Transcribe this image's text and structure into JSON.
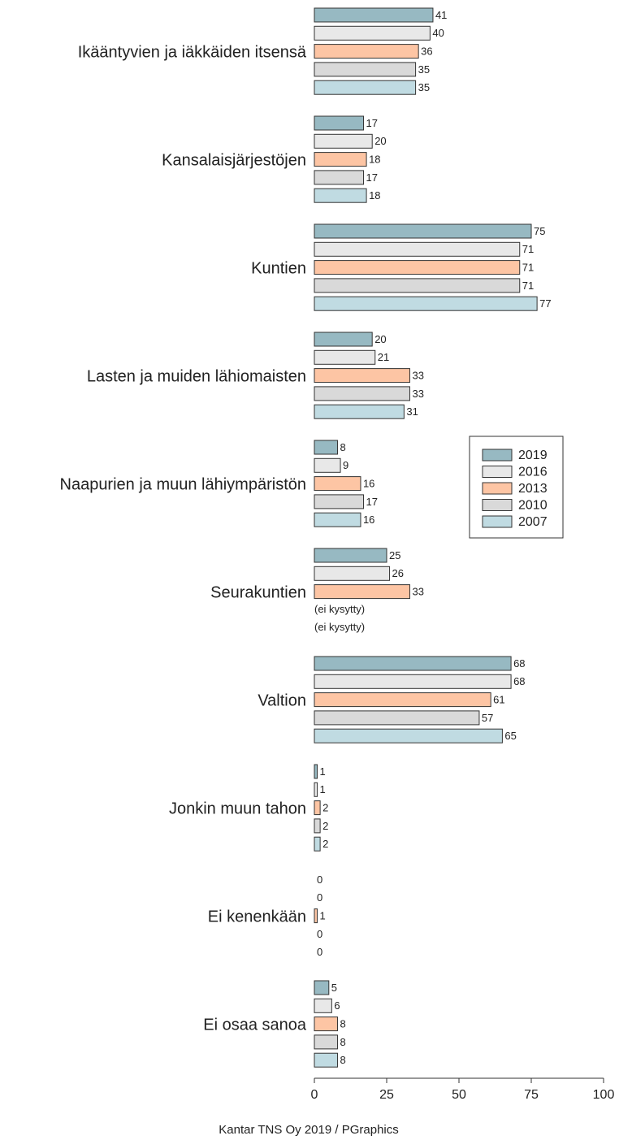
{
  "chart_data": {
    "type": "bar",
    "orientation": "horizontal",
    "categories": [
      "Ikääntyvien ja iäkkäiden itsensä",
      "Kansalaisjärjestöjen",
      "Kuntien",
      "Lasten ja muiden lähiomaisten",
      "Naapurien ja muun lähiympäristön",
      "Seurakuntien",
      "Valtion",
      "Jonkin muun tahon",
      "Ei kenenkään",
      "Ei osaa sanoa"
    ],
    "series": [
      {
        "name": "2019",
        "color": "#97b9c2",
        "values": [
          41,
          17,
          75,
          20,
          8,
          25,
          68,
          1,
          0,
          5
        ]
      },
      {
        "name": "2016",
        "color": "#e8e8e8",
        "values": [
          40,
          20,
          71,
          21,
          9,
          26,
          68,
          1,
          0,
          6
        ]
      },
      {
        "name": "2013",
        "color": "#fdc5a4",
        "values": [
          36,
          18,
          71,
          33,
          16,
          33,
          61,
          2,
          1,
          8
        ]
      },
      {
        "name": "2010",
        "color": "#d9d9d9",
        "values": [
          35,
          17,
          71,
          33,
          17,
          null,
          57,
          2,
          0,
          8
        ],
        "value_labels": [
          null,
          null,
          null,
          null,
          null,
          "(ei kysytty)",
          null,
          null,
          null,
          null
        ]
      },
      {
        "name": "2007",
        "color": "#c0dbe2",
        "values": [
          35,
          18,
          77,
          31,
          16,
          null,
          65,
          2,
          0,
          8
        ],
        "value_labels": [
          null,
          null,
          null,
          null,
          null,
          "(ei kysytty)",
          null,
          null,
          null,
          null
        ]
      }
    ],
    "xlim": [
      0,
      100
    ],
    "xticks": [
      0,
      25,
      50,
      75,
      100
    ],
    "legend": "right",
    "footer": "Kantar TNS Oy 2019 / PGraphics"
  }
}
